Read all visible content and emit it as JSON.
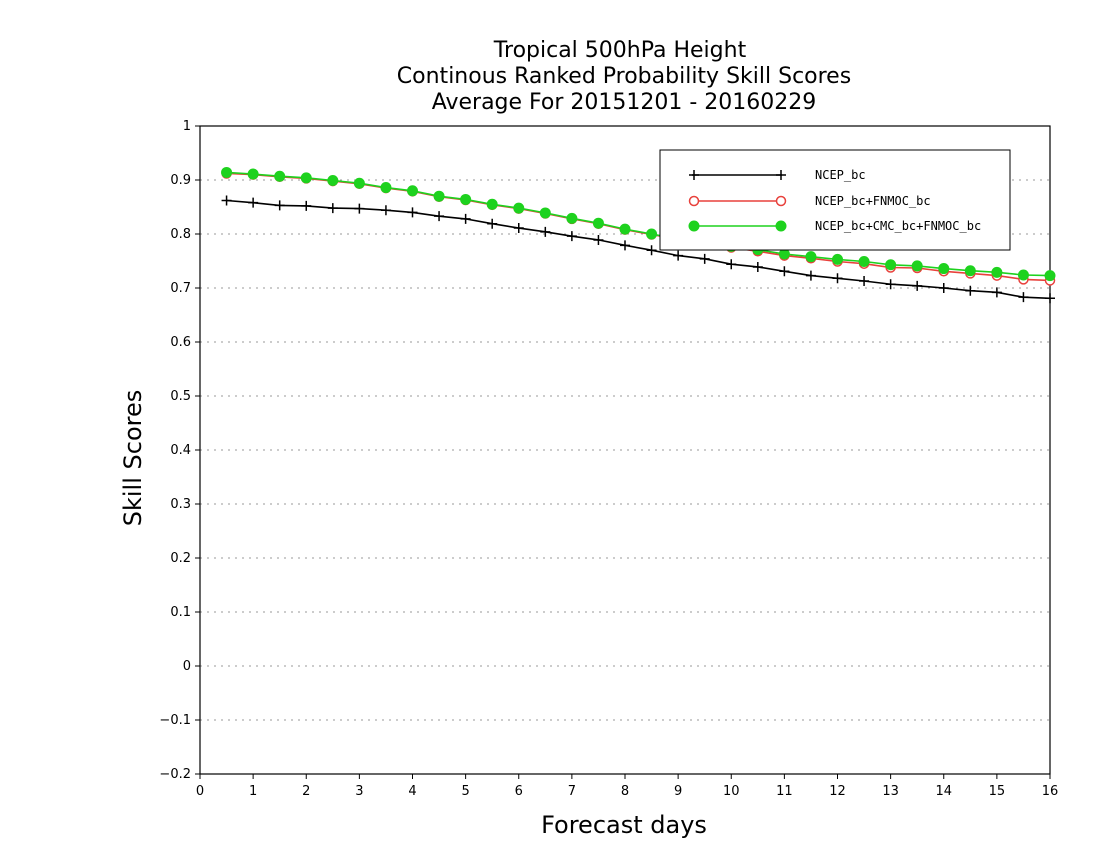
{
  "chart_data": {
    "type": "line",
    "title": [
      "Tropical 500hPa Height",
      "Continous Ranked Probability Skill Scores",
      "Average For 20151201 - 20160229"
    ],
    "xlabel": "Forecast days",
    "ylabel": "Skill Scores",
    "xlim": [
      0,
      16
    ],
    "ylim": [
      -0.2,
      1
    ],
    "x_ticks": [
      "0",
      "1",
      "2",
      "3",
      "4",
      "5",
      "6",
      "7",
      "8",
      "9",
      "10",
      "11",
      "12",
      "13",
      "14",
      "15",
      "16"
    ],
    "y_ticks": [
      "−0.2",
      "−0.1",
      "0",
      "0.1",
      "0.2",
      "0.3",
      "0.4",
      "0.5",
      "0.6",
      "0.7",
      "0.8",
      "0.9",
      "1"
    ],
    "grid": "horizontal dotted",
    "legend_position": "top-right",
    "x": [
      0.5,
      1,
      1.5,
      2,
      2.5,
      3,
      3.5,
      4,
      4.5,
      5,
      5.5,
      6,
      6.5,
      7,
      7.5,
      8,
      8.5,
      9,
      9.5,
      10,
      10.5,
      11,
      11.5,
      12,
      12.5,
      13,
      13.5,
      14,
      14.5,
      15,
      15.5,
      16
    ],
    "series": [
      {
        "name": "NCEP_bc",
        "color": "#000000",
        "marker": "plus",
        "values": [
          0.862,
          0.858,
          0.853,
          0.852,
          0.848,
          0.847,
          0.844,
          0.84,
          0.833,
          0.828,
          0.819,
          0.811,
          0.804,
          0.796,
          0.789,
          0.779,
          0.77,
          0.76,
          0.754,
          0.744,
          0.739,
          0.731,
          0.723,
          0.718,
          0.713,
          0.707,
          0.704,
          0.7,
          0.695,
          0.692,
          0.683,
          0.681
        ]
      },
      {
        "name": "NCEP_bc+FNMOC_bc",
        "color": "#e8413c",
        "marker": "open-circle",
        "values": [
          0.912,
          0.91,
          0.906,
          0.903,
          0.898,
          0.893,
          0.885,
          0.879,
          0.869,
          0.863,
          0.854,
          0.847,
          0.838,
          0.828,
          0.819,
          0.808,
          0.799,
          0.79,
          0.782,
          0.775,
          0.768,
          0.76,
          0.755,
          0.749,
          0.745,
          0.738,
          0.737,
          0.731,
          0.727,
          0.723,
          0.716,
          0.714
        ]
      },
      {
        "name": "NCEP_bc+CMC_bc+FNMOC_bc",
        "color": "#1ed21e",
        "marker": "filled-circle",
        "values": [
          0.914,
          0.911,
          0.907,
          0.904,
          0.899,
          0.894,
          0.886,
          0.88,
          0.87,
          0.864,
          0.855,
          0.848,
          0.839,
          0.829,
          0.82,
          0.809,
          0.8,
          0.791,
          0.784,
          0.777,
          0.771,
          0.763,
          0.758,
          0.753,
          0.749,
          0.743,
          0.741,
          0.736,
          0.732,
          0.729,
          0.724,
          0.723
        ]
      }
    ]
  }
}
